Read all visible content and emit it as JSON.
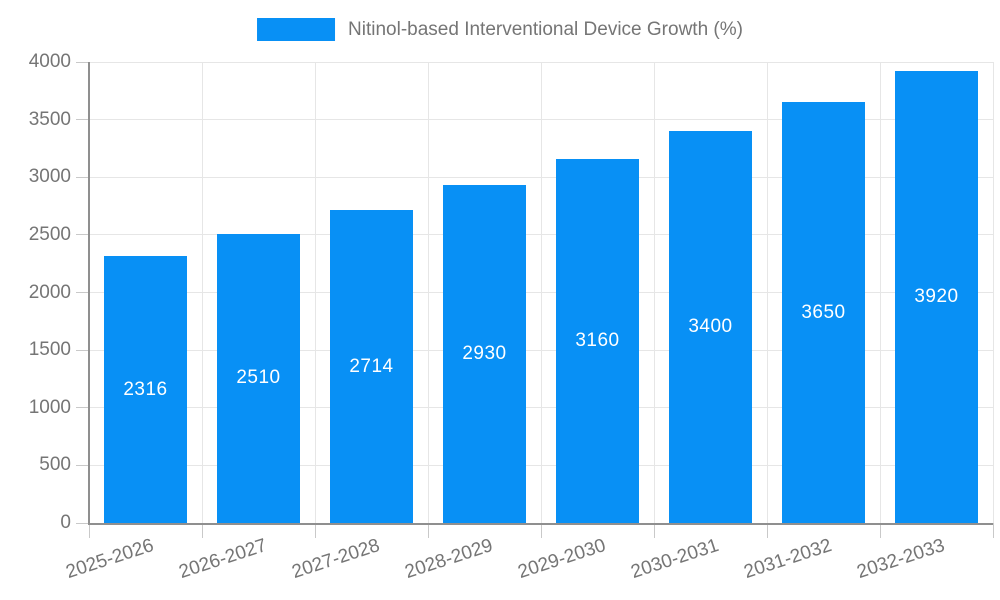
{
  "chart_data": {
    "type": "bar",
    "title": "Nitinol-based Interventional Device Growth (%)",
    "categories": [
      "2025-2026",
      "2026-2027",
      "2027-2028",
      "2028-2029",
      "2029-2030",
      "2030-2031",
      "2031-2032",
      "2032-2033"
    ],
    "values": [
      2316,
      2510,
      2714,
      2930,
      3160,
      3400,
      3650,
      3920
    ],
    "xlabel": "",
    "ylabel": "",
    "ylim": [
      0,
      4000
    ],
    "yticks": [
      0,
      500,
      1000,
      1500,
      2000,
      2500,
      3000,
      3500,
      4000
    ],
    "grid": true,
    "legend_position": "top",
    "bar_labels_visible": true,
    "bar_label_position": "inside-center"
  },
  "colors": {
    "bar": "#0890f5",
    "bar_label": "#ffffff",
    "axis_text": "#757575",
    "grid_line": "#e6e6e6",
    "axis_line": "#8f8f8f",
    "background": "#ffffff"
  }
}
